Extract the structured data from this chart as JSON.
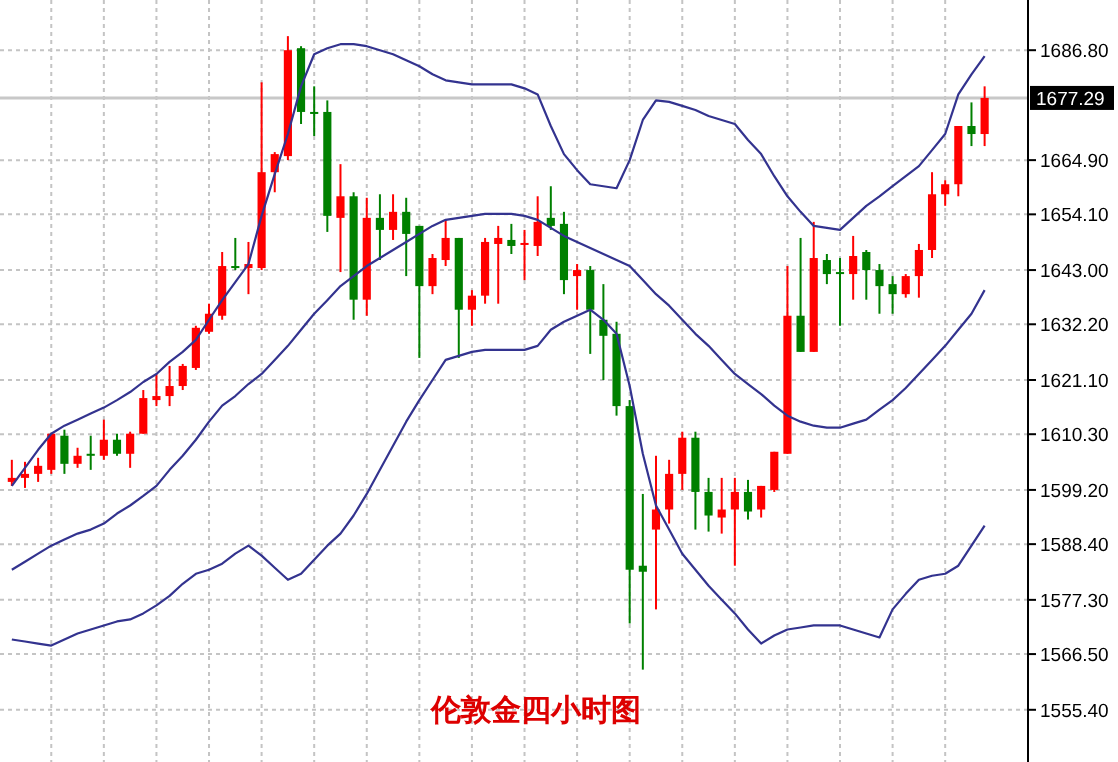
{
  "chart_data": {
    "type": "candlestick",
    "title": "伦敦金四小时图",
    "categories": [
      null,
      null,
      null,
      null,
      null,
      null,
      null,
      null,
      null,
      null,
      null,
      null,
      null,
      null,
      null,
      null,
      null,
      null,
      null,
      null,
      null,
      null,
      null,
      null,
      null,
      null,
      null,
      null,
      null,
      null,
      null,
      null,
      null,
      null,
      null,
      null,
      null,
      null,
      null,
      null,
      null,
      null,
      null,
      null,
      null,
      null,
      null,
      null,
      null,
      null,
      null,
      null,
      null,
      null,
      null,
      null,
      null,
      null,
      null,
      null,
      null,
      null,
      null,
      null,
      null,
      null,
      null,
      null,
      null,
      null,
      null,
      null,
      null,
      null,
      null
    ],
    "ohlc": [
      [
        1600.8,
        1605.2,
        1600.0,
        1601.6
      ],
      [
        1601.6,
        1604.8,
        1599.6,
        1602.4
      ],
      [
        1602.4,
        1605.6,
        1600.8,
        1604.0
      ],
      [
        1603.2,
        1610.4,
        1602.4,
        1610.4
      ],
      [
        1610.0,
        1611.2,
        1602.4,
        1604.4
      ],
      [
        1604.4,
        1607.6,
        1603.6,
        1606.0
      ],
      [
        1606.4,
        1610.0,
        1603.2,
        1606.0
      ],
      [
        1606.0,
        1613.2,
        1605.2,
        1609.2
      ],
      [
        1609.2,
        1610.4,
        1606.0,
        1606.4
      ],
      [
        1606.4,
        1610.8,
        1603.6,
        1610.4
      ],
      [
        1610.4,
        1619.1,
        1610.4,
        1617.5
      ],
      [
        1617.1,
        1622.3,
        1615.9,
        1617.9
      ],
      [
        1617.9,
        1623.9,
        1615.9,
        1619.9
      ],
      [
        1619.9,
        1624.3,
        1619.1,
        1623.9
      ],
      [
        1623.5,
        1631.9,
        1623.1,
        1631.5
      ],
      [
        1630.7,
        1636.3,
        1630.3,
        1634.3
      ],
      [
        1633.9,
        1646.6,
        1633.1,
        1643.8
      ],
      [
        1643.8,
        1649.4,
        1643.0,
        1643.4
      ],
      [
        1643.4,
        1648.6,
        1638.2,
        1644.2
      ],
      [
        1643.4,
        1680.4,
        1643.0,
        1662.5
      ],
      [
        1662.5,
        1666.5,
        1658.5,
        1666.1
      ],
      [
        1665.7,
        1689.6,
        1664.9,
        1686.8
      ],
      [
        1687.2,
        1687.6,
        1672.1,
        1674.5
      ],
      [
        1674.5,
        1679.6,
        1669.7,
        1674.1
      ],
      [
        1674.5,
        1676.8,
        1650.6,
        1653.8
      ],
      [
        1653.4,
        1664.1,
        1642.6,
        1657.7
      ],
      [
        1657.7,
        1658.5,
        1633.1,
        1637.1
      ],
      [
        1637.1,
        1657.4,
        1633.9,
        1653.4
      ],
      [
        1653.4,
        1658.1,
        1645.0,
        1651.0
      ],
      [
        1651.0,
        1658.1,
        1649.0,
        1654.6
      ],
      [
        1654.6,
        1657.4,
        1641.8,
        1650.2
      ],
      [
        1651.8,
        1651.8,
        1625.5,
        1639.8
      ],
      [
        1639.8,
        1646.2,
        1638.2,
        1645.4
      ],
      [
        1645.0,
        1653.0,
        1643.8,
        1649.4
      ],
      [
        1649.4,
        1649.4,
        1625.5,
        1635.1
      ],
      [
        1635.1,
        1639.0,
        1631.9,
        1637.9
      ],
      [
        1637.9,
        1649.4,
        1636.3,
        1648.6
      ],
      [
        1648.2,
        1651.8,
        1636.3,
        1649.4
      ],
      [
        1649.0,
        1652.2,
        1646.2,
        1647.8
      ],
      [
        1648.2,
        1651.0,
        1641.0,
        1648.4
      ],
      [
        1647.8,
        1657.7,
        1645.8,
        1652.6
      ],
      [
        1653.4,
        1659.7,
        1651.0,
        1651.8
      ],
      [
        1652.2,
        1654.6,
        1638.2,
        1641.0
      ],
      [
        1641.8,
        1644.2,
        1635.1,
        1643.0
      ],
      [
        1643.0,
        1643.8,
        1626.3,
        1635.1
      ],
      [
        1633.1,
        1640.2,
        1621.1,
        1629.9
      ],
      [
        1630.3,
        1632.7,
        1614.0,
        1615.9
      ],
      [
        1615.9,
        1617.1,
        1572.6,
        1583.3
      ],
      [
        1584.1,
        1598.4,
        1563.4,
        1582.9
      ],
      [
        1591.3,
        1606.0,
        1575.4,
        1595.3
      ],
      [
        1595.3,
        1605.2,
        1592.5,
        1602.4
      ],
      [
        1602.4,
        1610.8,
        1599.2,
        1609.6
      ],
      [
        1609.6,
        1610.8,
        1591.3,
        1598.8
      ],
      [
        1598.8,
        1601.6,
        1590.9,
        1594.1
      ],
      [
        1593.7,
        1601.6,
        1590.5,
        1595.3
      ],
      [
        1595.3,
        1601.6,
        1584.1,
        1598.8
      ],
      [
        1598.8,
        1601.2,
        1593.3,
        1594.9
      ],
      [
        1595.3,
        1600.0,
        1593.7,
        1600.0
      ],
      [
        1599.2,
        1606.8,
        1598.8,
        1606.8
      ],
      [
        1606.4,
        1643.8,
        1606.4,
        1633.9
      ],
      [
        1633.9,
        1649.4,
        1626.7,
        1626.7
      ],
      [
        1626.7,
        1652.6,
        1626.7,
        1645.4
      ],
      [
        1645.0,
        1646.2,
        1640.2,
        1642.2
      ],
      [
        1642.6,
        1645.4,
        1631.9,
        1642.2
      ],
      [
        1642.2,
        1649.8,
        1637.1,
        1645.8
      ],
      [
        1646.6,
        1647.0,
        1637.1,
        1643.0
      ],
      [
        1643.0,
        1644.2,
        1634.3,
        1639.8
      ],
      [
        1640.2,
        1641.8,
        1634.3,
        1638.2
      ],
      [
        1638.2,
        1642.2,
        1637.5,
        1641.8
      ],
      [
        1641.8,
        1648.2,
        1637.5,
        1647.0
      ],
      [
        1647.0,
        1662.5,
        1645.4,
        1658.1
      ],
      [
        1658.1,
        1660.9,
        1655.8,
        1660.1
      ],
      [
        1660.1,
        1671.7,
        1657.7,
        1671.7
      ],
      [
        1671.7,
        1676.4,
        1667.7,
        1670.1
      ],
      [
        1670.1,
        1679.6,
        1667.7,
        1677.29
      ]
    ],
    "colors": [
      "#ff0000",
      "#ff0000",
      "#ff0000",
      "#ff0000",
      "#008000",
      "#ff0000",
      "#008000",
      "#ff0000",
      "#008000",
      "#ff0000",
      "#ff0000",
      "#ff0000",
      "#ff0000",
      "#ff0000",
      "#ff0000",
      "#ff0000",
      "#ff0000",
      "#008000",
      "#ff0000",
      "#ff0000",
      "#ff0000",
      "#ff0000",
      "#008000",
      "#008000",
      "#008000",
      "#ff0000",
      "#008000",
      "#ff0000",
      "#008000",
      "#ff0000",
      "#008000",
      "#008000",
      "#ff0000",
      "#ff0000",
      "#008000",
      "#ff0000",
      "#ff0000",
      "#ff0000",
      "#008000",
      "#ff0000",
      "#ff0000",
      "#008000",
      "#008000",
      "#ff0000",
      "#008000",
      "#008000",
      "#008000",
      "#008000",
      "#008000",
      "#ff0000",
      "#ff0000",
      "#ff0000",
      "#008000",
      "#008000",
      "#ff0000",
      "#ff0000",
      "#008000",
      "#ff0000",
      "#ff0000",
      "#ff0000",
      "#008000",
      "#ff0000",
      "#008000",
      "#008000",
      "#ff0000",
      "#008000",
      "#008000",
      "#008000",
      "#ff0000",
      "#ff0000",
      "#ff0000",
      "#ff0000",
      "#ff0000",
      "#008000",
      "#ff0000"
    ],
    "series": [
      {
        "type": "line",
        "color": "#33338f",
        "values": [
          1600.0,
          1603.6,
          1607.2,
          1610.4,
          1612.0,
          1613.2,
          1614.4,
          1615.6,
          1617.1,
          1618.7,
          1620.7,
          1622.3,
          1624.7,
          1626.7,
          1629.1,
          1633.1,
          1637.0,
          1640.6,
          1644.2,
          1653.8,
          1662.1,
          1670.1,
          1679.6,
          1686.0,
          1687.2,
          1688.0,
          1688.0,
          1687.6,
          1686.8,
          1686.0,
          1684.8,
          1683.6,
          1682.0,
          1680.8,
          1680.4,
          1680.0,
          1680.0,
          1680.0,
          1680.0,
          1679.2,
          1678.0,
          1671.7,
          1666.1,
          1662.9,
          1660.1,
          1659.7,
          1659.3,
          1664.9,
          1672.9,
          1676.8,
          1676.5,
          1675.7,
          1674.9,
          1673.7,
          1672.9,
          1672.1,
          1668.9,
          1666.1,
          1661.7,
          1657.7,
          1654.6,
          1651.8,
          1651.4,
          1651.0,
          1653.4,
          1655.8,
          1657.7,
          1659.7,
          1661.7,
          1663.7,
          1666.9,
          1670.1,
          1678.0,
          1682.0,
          1685.6
        ]
      },
      {
        "type": "line",
        "color": "#33338f",
        "values": [
          1583.3,
          1584.9,
          1586.5,
          1588.1,
          1589.3,
          1590.5,
          1591.3,
          1592.5,
          1594.5,
          1596.1,
          1598.0,
          1600.0,
          1603.2,
          1606.0,
          1609.2,
          1612.8,
          1616.0,
          1617.9,
          1620.3,
          1622.3,
          1625.1,
          1627.9,
          1631.1,
          1634.3,
          1637.0,
          1639.8,
          1641.8,
          1643.8,
          1645.4,
          1647.0,
          1648.6,
          1650.2,
          1651.8,
          1653.0,
          1653.4,
          1653.8,
          1654.2,
          1654.2,
          1654.2,
          1653.8,
          1653.0,
          1651.4,
          1649.8,
          1648.6,
          1647.4,
          1646.2,
          1645.0,
          1643.8,
          1641.0,
          1638.2,
          1635.9,
          1633.1,
          1630.3,
          1627.9,
          1625.1,
          1622.3,
          1620.3,
          1618.3,
          1616.0,
          1614.0,
          1612.8,
          1612.0,
          1611.6,
          1611.6,
          1612.4,
          1613.2,
          1615.2,
          1617.1,
          1619.5,
          1622.3,
          1625.1,
          1627.9,
          1631.1,
          1634.3,
          1639.0
        ]
      },
      {
        "type": "line",
        "color": "#33338f",
        "values": [
          1569.4,
          1569.0,
          1568.6,
          1568.2,
          1569.4,
          1570.6,
          1571.4,
          1572.2,
          1573.0,
          1573.4,
          1574.6,
          1576.2,
          1578.1,
          1580.5,
          1582.5,
          1583.3,
          1584.5,
          1586.5,
          1588.1,
          1586.1,
          1583.7,
          1581.3,
          1582.5,
          1585.3,
          1588.1,
          1590.5,
          1594.1,
          1598.4,
          1603.2,
          1608.0,
          1612.8,
          1617.1,
          1621.1,
          1625.1,
          1625.9,
          1626.7,
          1627.1,
          1627.1,
          1627.1,
          1627.1,
          1627.9,
          1631.1,
          1632.7,
          1633.9,
          1635.1,
          1633.1,
          1630.3,
          1619.9,
          1606.4,
          1596.1,
          1591.3,
          1586.5,
          1583.3,
          1580.1,
          1577.3,
          1574.6,
          1571.4,
          1568.6,
          1570.2,
          1571.4,
          1571.8,
          1572.2,
          1572.2,
          1572.2,
          1571.4,
          1570.6,
          1569.8,
          1575.4,
          1578.5,
          1581.3,
          1582.1,
          1582.5,
          1584.1,
          1588.1,
          1592.1
        ]
      }
    ],
    "ylim": [
      1545.0,
      1696.8
    ],
    "yticks": [
      {
        "value": 1686.8,
        "label": "1686.80"
      },
      {
        "value": 1664.9,
        "label": "1664.90"
      },
      {
        "value": 1654.1,
        "label": "1654.10"
      },
      {
        "value": 1643.0,
        "label": "1643.00"
      },
      {
        "value": 1632.2,
        "label": "1632.20"
      },
      {
        "value": 1621.1,
        "label": "1621.10"
      },
      {
        "value": 1610.3,
        "label": "1610.30"
      },
      {
        "value": 1599.2,
        "label": "1599.20"
      },
      {
        "value": 1588.4,
        "label": "1588.40"
      },
      {
        "value": 1577.3,
        "label": "1577.30"
      },
      {
        "value": 1566.5,
        "label": "1566.50"
      },
      {
        "value": 1555.4,
        "label": "1555.40"
      }
    ],
    "ref_lines": [
      {
        "axis": "y",
        "value": 1677.29,
        "label": "1677.29",
        "color": "#c8c8c8"
      }
    ],
    "grid": true,
    "tick_labels": "y"
  }
}
